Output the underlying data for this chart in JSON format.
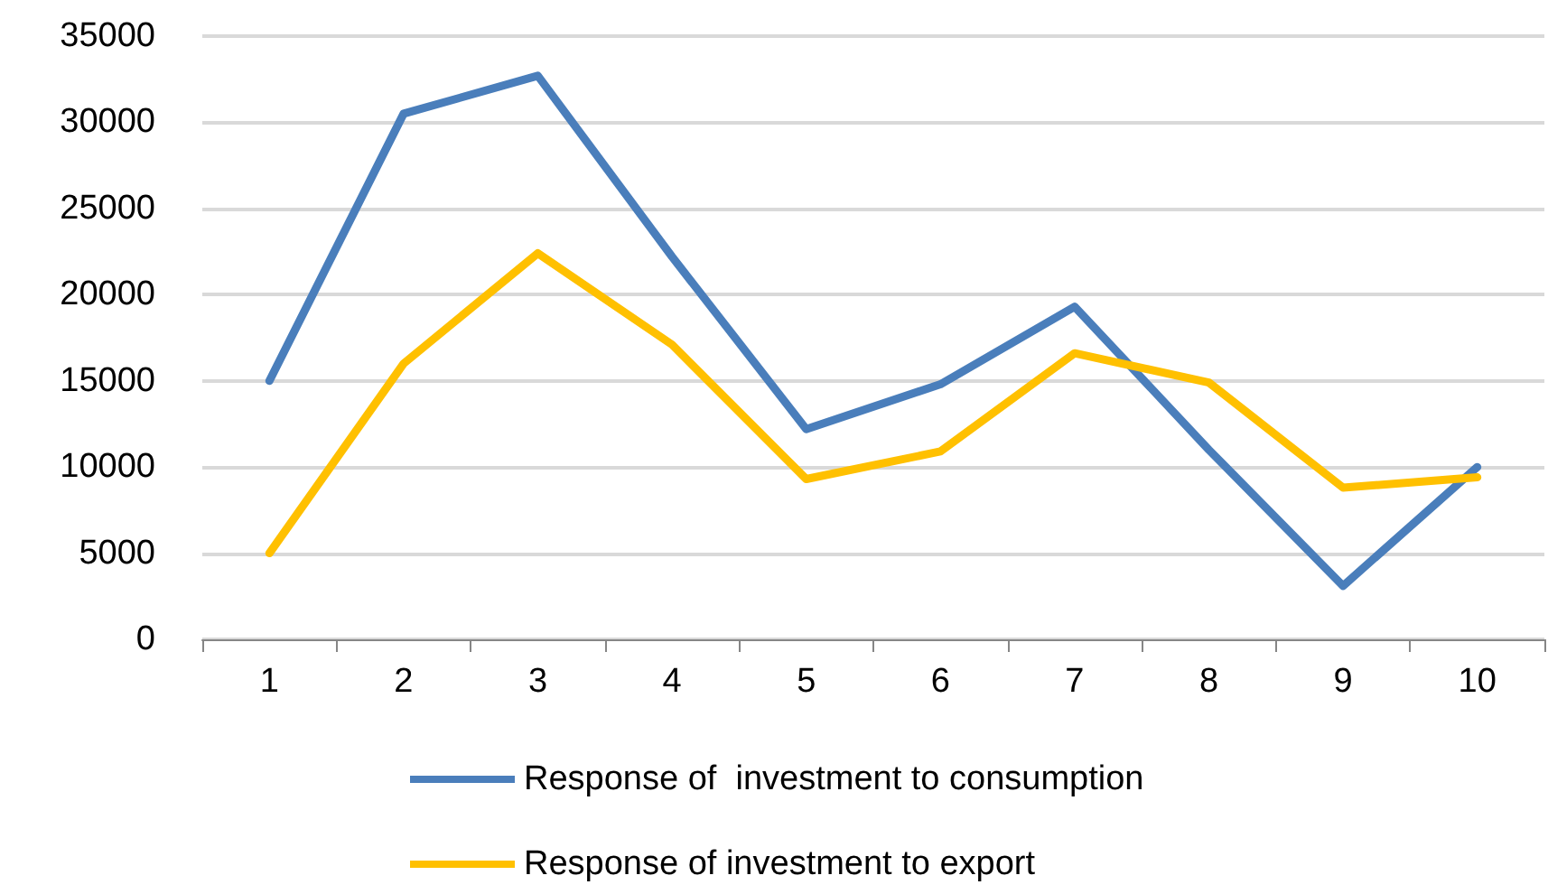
{
  "chart_data": {
    "type": "line",
    "categories": [
      "1",
      "2",
      "3",
      "4",
      "5",
      "6",
      "7",
      "8",
      "9",
      "10"
    ],
    "series": [
      {
        "name": "Response of  investment to consumption",
        "color": "#4a7ebb",
        "values": [
          15000,
          30500,
          32700,
          22200,
          12200,
          14800,
          19300,
          11000,
          3100,
          10000
        ]
      },
      {
        "name": "Response of investment to export",
        "color": "#ffc000",
        "values": [
          5000,
          16000,
          22400,
          17100,
          9300,
          10900,
          16600,
          14900,
          8800,
          9400
        ]
      }
    ],
    "ylim": [
      0,
      35000
    ],
    "yticks": [
      0,
      5000,
      10000,
      15000,
      20000,
      25000,
      30000,
      35000
    ],
    "grid": "y",
    "legend": "bottom",
    "marker": "none",
    "line_style": "solid"
  }
}
